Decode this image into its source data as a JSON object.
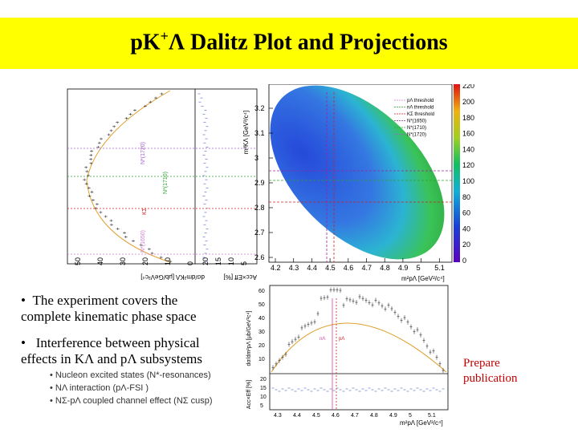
{
  "title": {
    "prefix": "p",
    "k": "K",
    "sup": "+",
    "lambda": "Λ",
    "rest": " Dalitz Plot and Projections"
  },
  "bullets": [
    {
      "marker": "•",
      "line1": "The experiment covers the",
      "line2": "complete kinematic phase space"
    },
    {
      "marker": "•",
      "line1": "Interference between physical",
      "line2": "effects in KΛ and pΛ subsystems"
    }
  ],
  "sub_bullets": [
    "• Nucleon excited states (N*-resonances)",
    "• NΛ interaction (pΛ-FSI )",
    "• NΣ-pΛ coupled channel effect (NΣ cusp)"
  ],
  "side_note": {
    "line1": "Prepare",
    "line2": "publication"
  },
  "dalitz": {
    "xlabel": "m²pΛ [GeV²/c⁴]",
    "ylabel": "m²KΛ [GeV²/c⁴]",
    "x_ticks": [
      "4.2",
      "4.3",
      "4.4",
      "4.5",
      "4.6",
      "4.7",
      "4.8",
      "4.9",
      "5",
      "5.1"
    ],
    "y_ticks": [
      "2.6",
      "2.7",
      "2.8",
      "2.9",
      "3",
      "3.1",
      "3.2"
    ],
    "colorbar_ticks": [
      "0",
      "20",
      "40",
      "60",
      "80",
      "100",
      "120",
      "140",
      "160",
      "180",
      "200",
      "220"
    ],
    "legend": [
      "pΛ threshold",
      "nΛ threshold",
      "KΣ threshold",
      "N*(1650)",
      "N*(1710)",
      "N*(1720)"
    ],
    "colors": {
      "low": "#1a3fd8",
      "mid": "#22c040",
      "high": "#e02010"
    }
  },
  "left_projection": {
    "xlabel": "dσ/dm²KΛ [μb/GeV²c⁴]",
    "x_ticks": [
      "50",
      "40",
      "30",
      "20",
      "10",
      "0"
    ],
    "acc_label": "Acc×Eff [%]",
    "acc_ticks": [
      "20",
      "15",
      "10",
      "5"
    ],
    "line_labels": [
      "N*(1720)",
      "N*(1710)",
      "KΣ",
      "N*(1650)"
    ]
  },
  "bottom_projection": {
    "ylabel": "dσ/dm²pΛ [μb/GeV²c⁴]",
    "y_ticks": [
      "60",
      "50",
      "40",
      "30",
      "20",
      "10"
    ],
    "acc_label": "Acc×Eff [%]",
    "acc_ticks": [
      "20",
      "15",
      "10",
      "5"
    ],
    "x_ticks": [
      "4.3",
      "4.4",
      "4.5",
      "4.6",
      "4.7",
      "4.8",
      "4.9",
      "5",
      "5.1"
    ],
    "xlabel": "m²pΛ [GeV²/c⁴]",
    "line_labels": [
      "nΛ",
      "pΛ"
    ]
  }
}
